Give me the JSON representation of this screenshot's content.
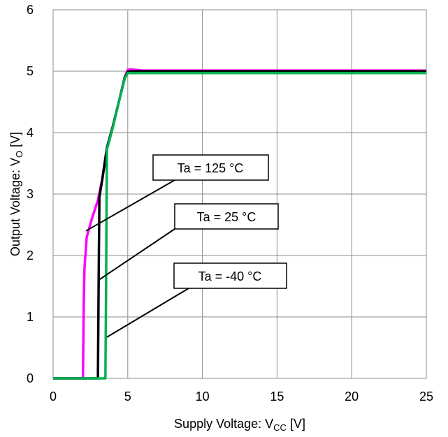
{
  "chart_data": {
    "type": "line",
    "xlabel_main": "Supply Voltage: V",
    "xlabel_sub": "CC",
    "xlabel_unit": " [V]",
    "ylabel_main": "Output Voltage: V",
    "ylabel_sub": "O",
    "ylabel_unit": " [V]",
    "xlim": [
      0,
      25
    ],
    "ylim": [
      0,
      6
    ],
    "xticks": [
      "0",
      "5",
      "10",
      "15",
      "20",
      "25"
    ],
    "yticks": [
      "0",
      "1",
      "2",
      "3",
      "4",
      "5",
      "6"
    ],
    "grid": true,
    "series": [
      {
        "name": "Ta = 125 °C",
        "color": "#ff00ff",
        "points": [
          [
            0,
            0
          ],
          [
            2.0,
            0
          ],
          [
            2.05,
            1.2
          ],
          [
            2.1,
            1.8
          ],
          [
            2.25,
            2.3
          ],
          [
            2.6,
            2.6
          ],
          [
            3.0,
            2.9
          ],
          [
            3.3,
            3.25
          ],
          [
            3.6,
            3.75
          ],
          [
            4.0,
            4.1
          ],
          [
            4.4,
            4.5
          ],
          [
            4.8,
            4.9
          ],
          [
            5.0,
            5.02
          ],
          [
            5.2,
            5.03
          ],
          [
            6,
            5.01
          ],
          [
            25,
            5.01
          ]
        ]
      },
      {
        "name": "Ta = 25 °C",
        "color": "#000000",
        "points": [
          [
            0,
            0
          ],
          [
            3.0,
            0
          ],
          [
            3.05,
            1.5
          ],
          [
            3.1,
            2.95
          ],
          [
            3.3,
            3.25
          ],
          [
            3.6,
            3.75
          ],
          [
            4.0,
            4.1
          ],
          [
            4.4,
            4.5
          ],
          [
            4.8,
            4.9
          ],
          [
            5.0,
            4.99
          ],
          [
            5.3,
            5.0
          ],
          [
            25,
            5.0
          ]
        ]
      },
      {
        "name": "Ta = -40 °C",
        "color": "#00b050",
        "points": [
          [
            0,
            0
          ],
          [
            3.5,
            0
          ],
          [
            3.55,
            1.5
          ],
          [
            3.6,
            3.72
          ],
          [
            4.0,
            4.08
          ],
          [
            4.4,
            4.5
          ],
          [
            4.8,
            4.88
          ],
          [
            5.0,
            4.97
          ],
          [
            5.3,
            4.97
          ],
          [
            25,
            4.97
          ]
        ]
      }
    ],
    "annotations": [
      {
        "text": "Ta = 125 °C",
        "series": "Ta = 125 °C",
        "anchor_x": 2.2,
        "anchor_y": 2.4
      },
      {
        "text": "Ta = 25 °C",
        "series": "Ta = 25 °C",
        "anchor_x": 3.05,
        "anchor_y": 1.6
      },
      {
        "text": "Ta = -40 °C",
        "series": "Ta = -40 °C",
        "anchor_x": 3.6,
        "anchor_y": 0.67
      }
    ]
  }
}
